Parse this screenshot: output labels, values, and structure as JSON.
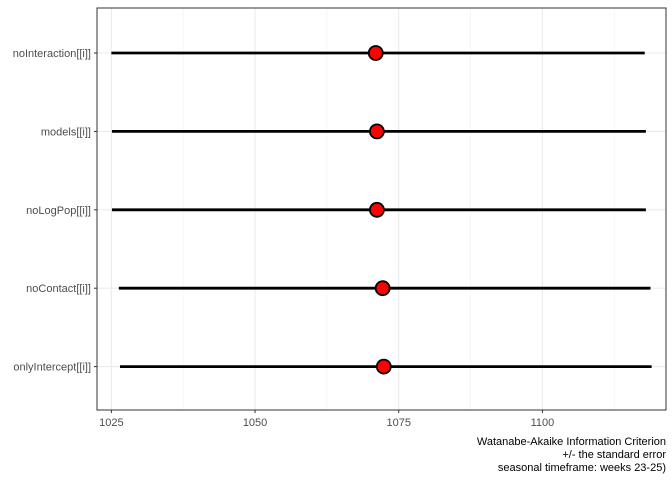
{
  "chart_data": {
    "type": "dot-errorbar",
    "categories": [
      "noInteraction[[i]]",
      "models[[i]]",
      "noLogPop[[i]]",
      "noContact[[i]]",
      "onlyIntercept[[i]]"
    ],
    "points": [
      {
        "label": "noInteraction[[i]]",
        "value": 1071.0,
        "low": 1025.0,
        "high": 1117.8
      },
      {
        "label": "models[[i]]",
        "value": 1071.2,
        "low": 1025.1,
        "high": 1118.0
      },
      {
        "label": "noLogPop[[i]]",
        "value": 1071.2,
        "low": 1025.1,
        "high": 1118.0
      },
      {
        "label": "noContact[[i]]",
        "value": 1072.2,
        "low": 1026.3,
        "high": 1118.8
      },
      {
        "label": "onlyIntercept[[i]]",
        "value": 1072.4,
        "low": 1026.5,
        "high": 1119.0
      }
    ],
    "x_ticks": [
      1025,
      1050,
      1075,
      1100
    ],
    "xlim": [
      1022.5,
      1121.5
    ],
    "xlabel": [
      "Watanabe-Akaike Information Criterion",
      "+/- the standard error",
      "seasonal timeframe: weeks 23-25)"
    ],
    "ylabel": "",
    "grid": true,
    "colors": {
      "point_fill": "#ff0000",
      "point_stroke": "#000000",
      "errorbar": "#000000",
      "grid_major": "#ebebeb",
      "grid_minor": "#f5f5f5",
      "panel_border": "#333333",
      "tick_text": "#4d4d4d"
    }
  }
}
